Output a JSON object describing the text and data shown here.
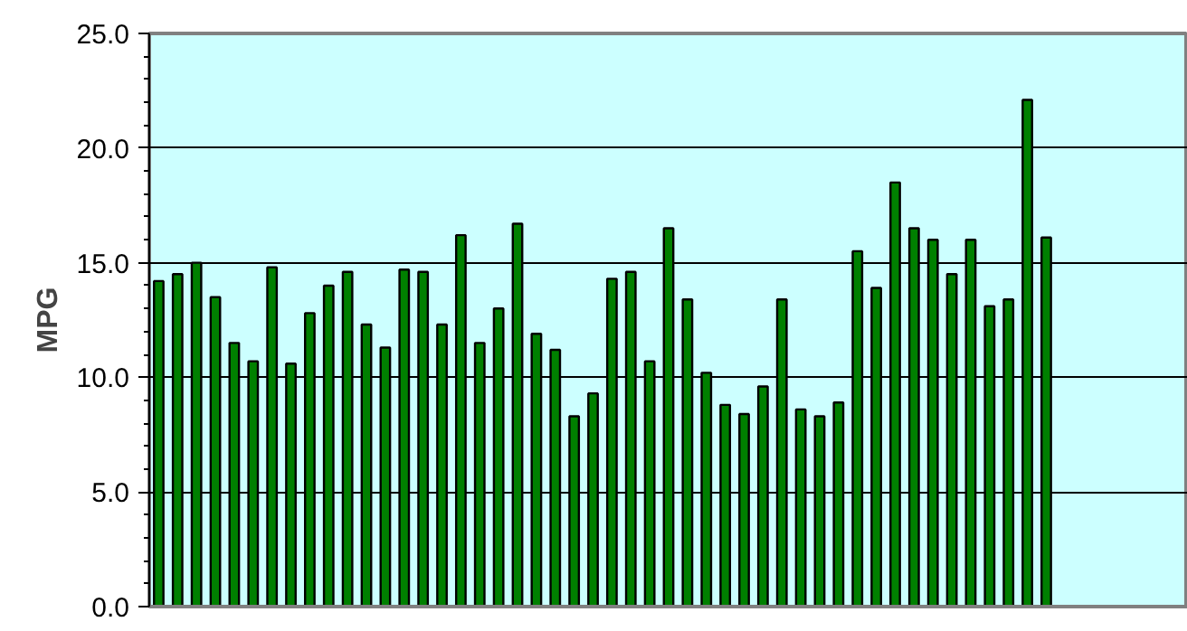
{
  "chart_data": {
    "type": "bar",
    "ylabel": "MPG",
    "categories": [
      null,
      null,
      null,
      null,
      null,
      null,
      null,
      null,
      null,
      null,
      null,
      null,
      null,
      null,
      null,
      null,
      null,
      null,
      null,
      null,
      null,
      null,
      null,
      null,
      null,
      null,
      null,
      null,
      null,
      null,
      null,
      null,
      null,
      null,
      null,
      null,
      null,
      null,
      null,
      null,
      null,
      null,
      null,
      null,
      null,
      null,
      null,
      null,
      null,
      null,
      null,
      null,
      null,
      null,
      null
    ],
    "values": [
      14.2,
      14.5,
      15.0,
      13.5,
      11.5,
      10.7,
      14.8,
      10.6,
      12.8,
      14.0,
      14.6,
      12.3,
      11.3,
      14.7,
      14.6,
      12.3,
      16.2,
      11.5,
      13.0,
      16.7,
      11.9,
      11.2,
      8.3,
      9.3,
      14.3,
      14.6,
      10.7,
      16.5,
      13.4,
      10.2,
      8.8,
      8.4,
      9.6,
      13.4,
      8.6,
      8.3,
      8.9,
      15.5,
      13.9,
      18.5,
      16.5,
      16.0,
      14.5,
      16.0,
      13.1,
      13.4,
      22.1,
      16.1,
      null,
      null,
      null,
      null,
      null,
      null,
      null
    ],
    "color": "#008000",
    "ylim": [
      0,
      25
    ],
    "yticks": [
      {
        "value": 0,
        "label": "0.0"
      },
      {
        "value": 5,
        "label": "5.0"
      },
      {
        "value": 10,
        "label": "10.0"
      },
      {
        "value": 15,
        "label": "15.0"
      },
      {
        "value": 20,
        "label": "20.0"
      },
      {
        "value": 25,
        "label": "25.0"
      }
    ],
    "grid": "y"
  }
}
